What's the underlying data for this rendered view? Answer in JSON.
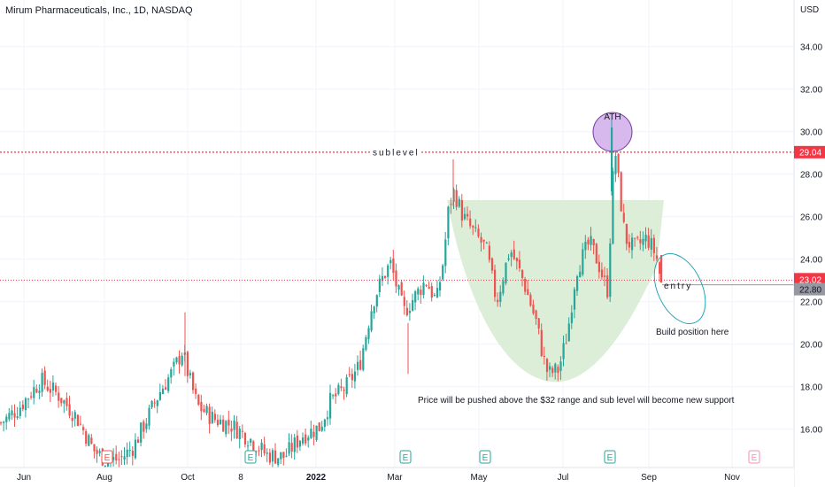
{
  "header": {
    "title": "Mirum Pharmaceuticals, Inc., 1D, NASDAQ"
  },
  "colors": {
    "up": "#26a69a",
    "down": "#ef5350",
    "level": "#f23645",
    "cup": "#d6ebd0",
    "ath": "#d7b9ee",
    "ellipse": "#26a6b3",
    "earnings": "#26a69a",
    "earnings_future": "#f48fb1"
  },
  "chart_data": {
    "type": "candlestick",
    "currency_label": "USD",
    "ylim": [
      14.2,
      36.2
    ],
    "y_ticks": [
      16,
      18,
      20,
      22,
      24,
      26,
      28,
      30,
      32,
      34
    ],
    "y_tick_labels": [
      "16.00",
      "18.00",
      "20.00",
      "22.00",
      "24.00",
      "26.00",
      "28.00",
      "30.00",
      "32.00",
      "34.00"
    ],
    "x_ticks": [
      "Jun",
      "Aug",
      "Oct",
      "8",
      "2022",
      "Mar",
      "May",
      "Jul",
      "Sep",
      "Nov"
    ],
    "price_levels": [
      {
        "value": 29.04,
        "label": "29.04",
        "style": "dotted"
      },
      {
        "value": 23.02,
        "label": "23.02",
        "style": "dotted"
      },
      {
        "value": 22.8,
        "label": "22.80",
        "style": "solid"
      }
    ],
    "annotations": {
      "sublevel": "sublevel",
      "ath": "ATH",
      "entry": "entry",
      "build": "Build position here",
      "note": "Price will be pushed above the $32 range and sub level will become new support"
    },
    "earnings_marker": "E",
    "price_path": [
      [
        0,
        16.3
      ],
      [
        20,
        17.0
      ],
      [
        45,
        18.3
      ],
      [
        65,
        17.6
      ],
      [
        85,
        16.6
      ],
      [
        105,
        15.0
      ],
      [
        120,
        14.5
      ],
      [
        135,
        14.6
      ],
      [
        150,
        15.2
      ],
      [
        165,
        16.5
      ],
      [
        180,
        17.8
      ],
      [
        195,
        18.8
      ],
      [
        205,
        19.7
      ],
      [
        212,
        18.5
      ],
      [
        222,
        17.1
      ],
      [
        240,
        16.5
      ],
      [
        260,
        16.2
      ],
      [
        280,
        15.6
      ],
      [
        300,
        14.8
      ],
      [
        320,
        14.7
      ],
      [
        340,
        15.7
      ],
      [
        360,
        16.1
      ],
      [
        372,
        17.3
      ],
      [
        390,
        18.0
      ],
      [
        405,
        19.0
      ],
      [
        420,
        22.0
      ],
      [
        432,
        23.2
      ],
      [
        440,
        23.8
      ],
      [
        455,
        21.5
      ],
      [
        465,
        22.1
      ],
      [
        480,
        23.0
      ],
      [
        492,
        22.0
      ],
      [
        500,
        24.0
      ],
      [
        506,
        26.5
      ],
      [
        512,
        27.2
      ],
      [
        522,
        26.0
      ],
      [
        535,
        25.2
      ],
      [
        548,
        24.5
      ],
      [
        560,
        22.0
      ],
      [
        575,
        24.5
      ],
      [
        590,
        23.0
      ],
      [
        605,
        21.0
      ],
      [
        612,
        19.5
      ],
      [
        618,
        18.6
      ],
      [
        630,
        18.8
      ],
      [
        640,
        20.5
      ],
      [
        650,
        23.5
      ],
      [
        665,
        24.8
      ],
      [
        675,
        23.8
      ],
      [
        685,
        22.5
      ],
      [
        690,
        26.5
      ],
      [
        693,
        29.5
      ],
      [
        698,
        27.5
      ],
      [
        705,
        25.0
      ],
      [
        715,
        24.5
      ],
      [
        730,
        25.0
      ],
      [
        740,
        24.2
      ],
      [
        746,
        22.9
      ]
    ]
  }
}
